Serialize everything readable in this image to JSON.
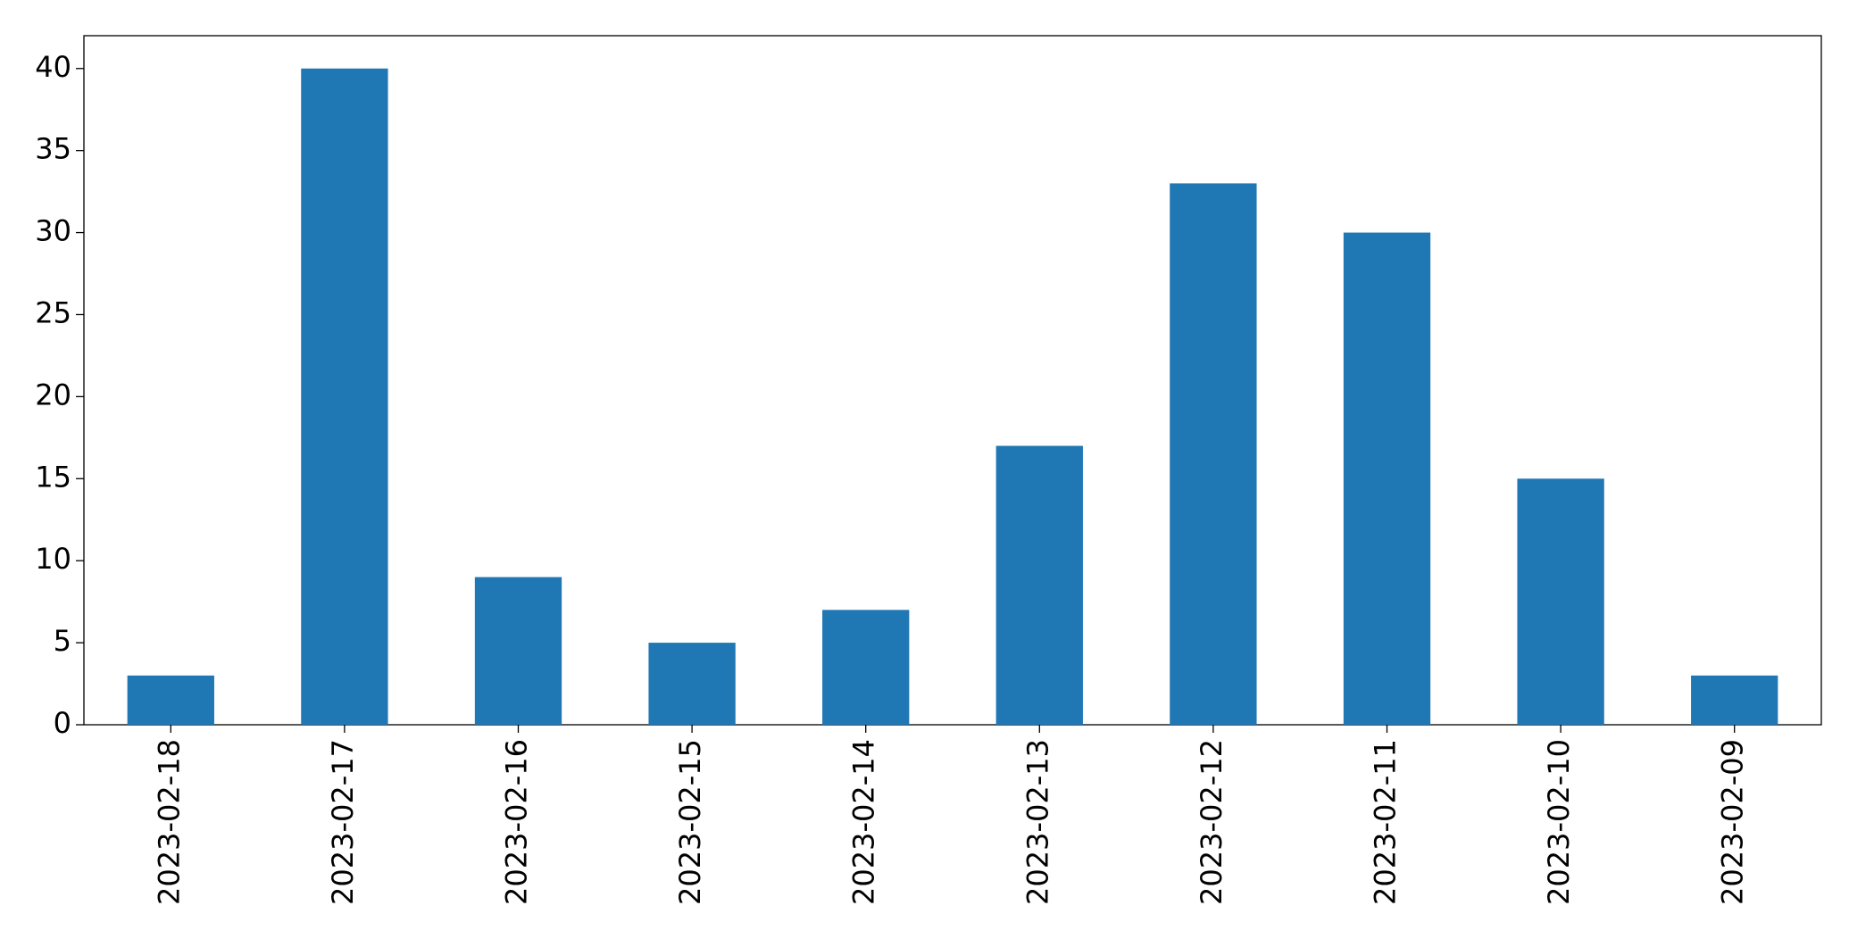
{
  "chart_data": {
    "type": "bar",
    "categories": [
      "2023-02-18",
      "2023-02-17",
      "2023-02-16",
      "2023-02-15",
      "2023-02-14",
      "2023-02-13",
      "2023-02-12",
      "2023-02-11",
      "2023-02-10",
      "2023-02-09"
    ],
    "values": [
      3,
      40,
      9,
      5,
      7,
      17,
      33,
      30,
      15,
      3
    ],
    "color": "#1f77b4",
    "ylim": [
      0,
      42
    ],
    "yticks": [
      0,
      5,
      10,
      15,
      20,
      25,
      30,
      35,
      40
    ],
    "grid": false
  }
}
